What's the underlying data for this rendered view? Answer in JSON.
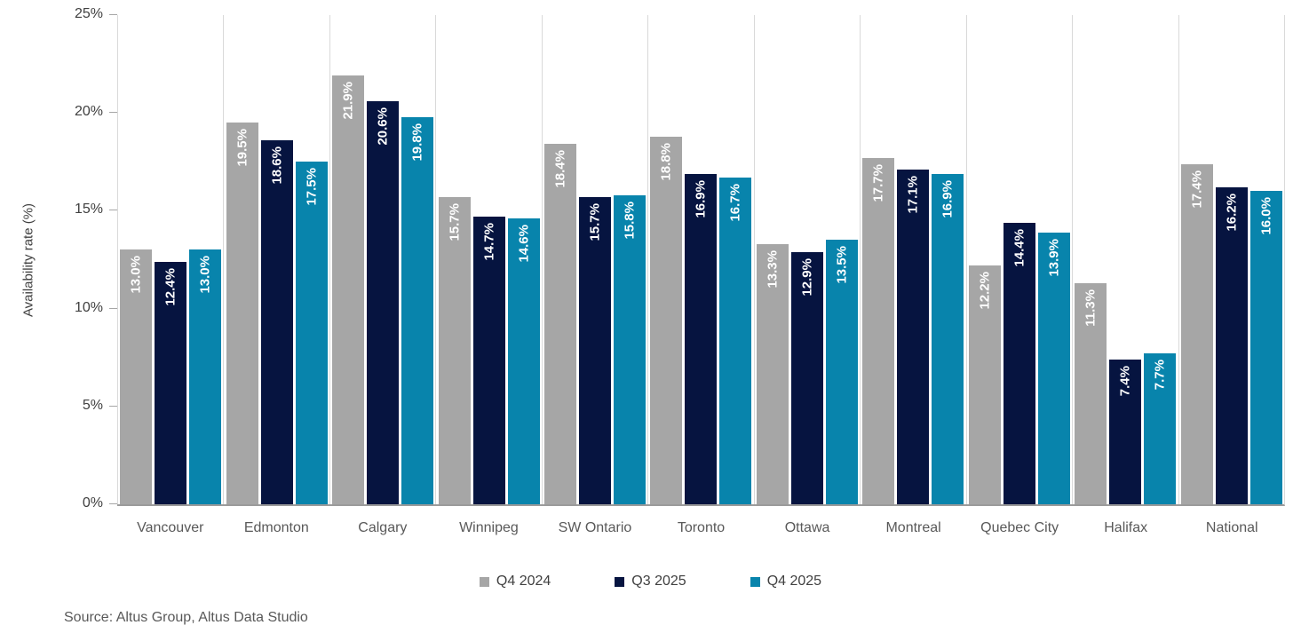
{
  "chart_data": {
    "type": "bar",
    "title": "",
    "ylabel": "Availability rate (%)",
    "ylim": [
      0,
      25
    ],
    "yticks": [
      0,
      5,
      10,
      15,
      20,
      25
    ],
    "ytick_suffix": "%",
    "grid": "vertical-category-separators-only",
    "legend_position": "bottom-center",
    "categories": [
      "Vancouver",
      "Edmonton",
      "Calgary",
      "Winnipeg",
      "SW Ontario",
      "Toronto",
      "Ottawa",
      "Montreal",
      "Quebec City",
      "Halifax",
      "National"
    ],
    "series": [
      {
        "name": "Q4 2024",
        "color": "#a6a6a6",
        "values": [
          13.0,
          19.5,
          21.9,
          15.7,
          18.4,
          18.8,
          13.3,
          17.7,
          12.2,
          11.3,
          17.4
        ]
      },
      {
        "name": "Q3 2025",
        "color": "#061440",
        "values": [
          12.4,
          18.6,
          20.6,
          14.7,
          15.7,
          16.9,
          12.9,
          17.1,
          14.4,
          7.4,
          16.2
        ]
      },
      {
        "name": "Q4 2025",
        "color": "#0884ac",
        "values": [
          13.0,
          17.5,
          19.8,
          14.6,
          15.8,
          16.7,
          13.5,
          16.9,
          13.9,
          7.7,
          16.0
        ]
      }
    ],
    "value_label_suffix": "%"
  },
  "source_note": "Source: Altus Group, Altus Data Studio",
  "colors": {
    "axis_line": "#9b9b9b",
    "separator": "#d9d9d9",
    "tick_label": "#404040",
    "category_label": "#595959",
    "bar_value_label": "#ffffff"
  }
}
